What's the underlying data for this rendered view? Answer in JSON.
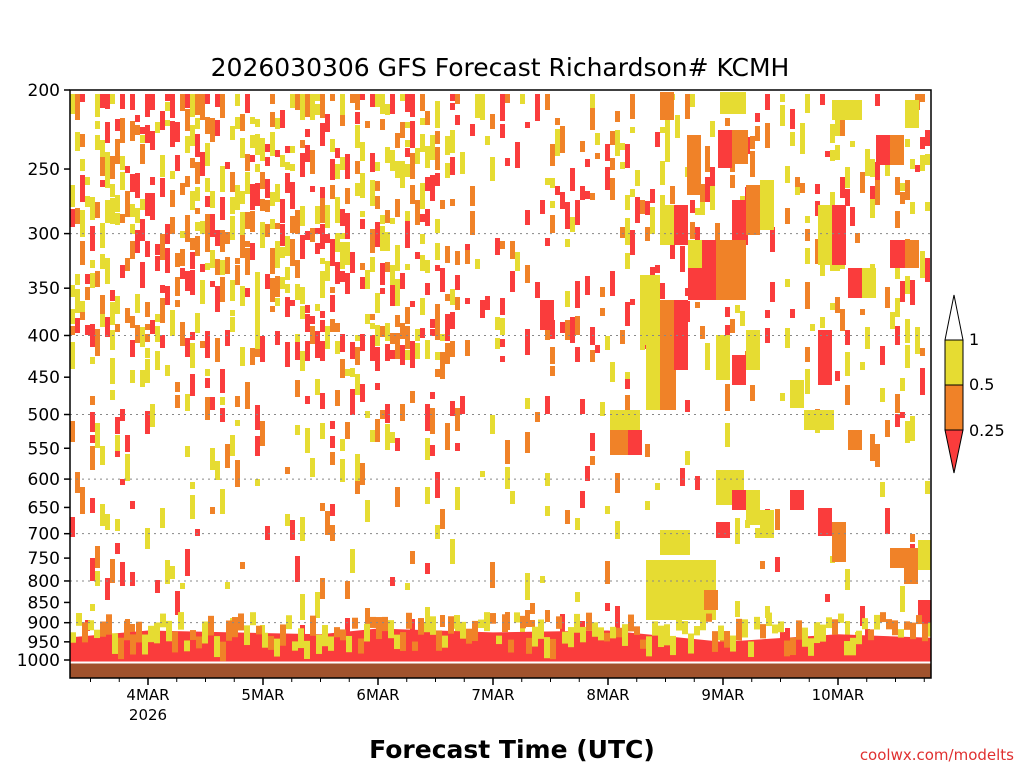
{
  "chart_data": {
    "type": "heatmap",
    "title": "2026030306 GFS Forecast Richardson# KCMH",
    "xlabel": "Forecast Time (UTC)",
    "ylabel": "",
    "credit": "coolwx.com/modelts",
    "y_scale": "log",
    "y_axis_reversed": true,
    "ylim": [
      1000,
      200
    ],
    "xlim": [
      "2026-03-03 06Z",
      "2026-03-10 21Z"
    ],
    "y_ticks": [
      "200",
      "250",
      "300",
      "350",
      "400",
      "450",
      "500",
      "550",
      "600",
      "650",
      "700",
      "750",
      "800",
      "850",
      "900",
      "950",
      "1000"
    ],
    "x_ticks": [
      {
        "label": "4MAR",
        "sub": "2026"
      },
      {
        "label": "5MAR",
        "sub": ""
      },
      {
        "label": "6MAR",
        "sub": ""
      },
      {
        "label": "7MAR",
        "sub": ""
      },
      {
        "label": "8MAR",
        "sub": ""
      },
      {
        "label": "9MAR",
        "sub": ""
      },
      {
        "label": "10MAR",
        "sub": ""
      }
    ],
    "grid": "dotted horizontal lines at 300, 400, 500, 600, 700, 800, 900 hPa",
    "legend": {
      "placement": "right",
      "levels": [
        "1",
        "0.5",
        "0.25"
      ],
      "bins": [
        {
          "range": "> 1",
          "color": "#ffffff"
        },
        {
          "range": "0.5 - 1",
          "color": "#e6dc32"
        },
        {
          "range": "0.25 - 0.5",
          "color": "#f08228"
        },
        {
          "range": "< 0.25",
          "color": "#fa3c3c"
        }
      ]
    },
    "colors": {
      "red": "#fa3c3c",
      "orange": "#f08228",
      "yellow": "#e6dc32",
      "ground": "#a0522d"
    },
    "surface_pressure_hpa": 1010,
    "series": [
      {
        "values": [
          {
            "x": "03 06Z",
            "region": "low-level layer",
            "p_top": 940,
            "class": "< 0.25"
          },
          {
            "x": "04 00Z",
            "region": "low-level layer",
            "p_top": 920,
            "class": "< 0.25"
          },
          {
            "x": "05 12Z",
            "region": "low-level layer",
            "p_top": 930,
            "class": "< 0.25"
          },
          {
            "x": "06 00Z",
            "region": "low-level layer",
            "p_top": 915,
            "class": "< 0.25"
          },
          {
            "x": "07 00Z",
            "region": "low-level layer",
            "p_top": 925,
            "class": "< 0.25"
          },
          {
            "x": "08 00Z",
            "region": "low-level layer",
            "p_top": 920,
            "class": "< 0.25"
          },
          {
            "x": "09 00Z",
            "region": "low-level layer",
            "p_top": 950,
            "class": "< 0.25"
          },
          {
            "x": "10 00Z",
            "region": "low-level layer",
            "p_top": 930,
            "class": "< 0.25"
          },
          {
            "x": "10 21Z",
            "region": "low-level layer",
            "p_top": 940,
            "class": "< 0.25"
          }
        ]
      }
    ]
  }
}
